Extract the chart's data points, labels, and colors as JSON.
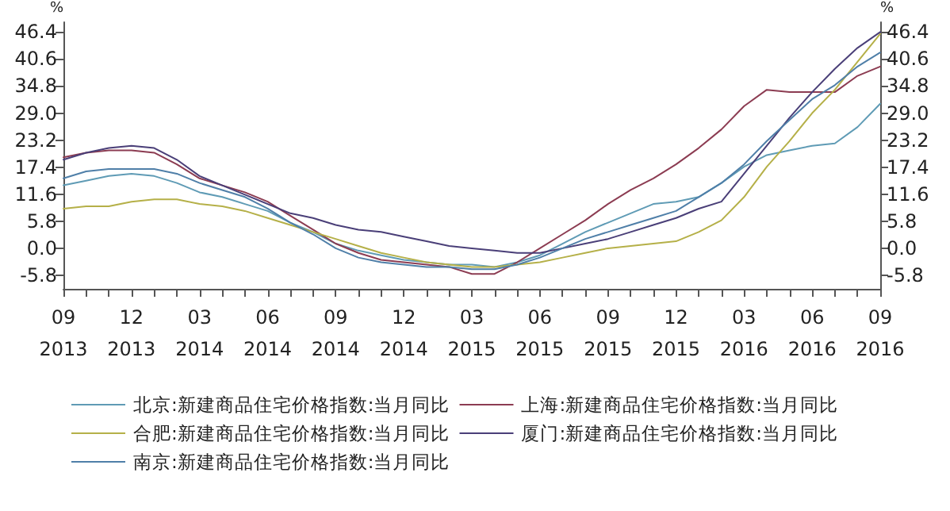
{
  "chart_data": {
    "type": "line",
    "ylabel": "%",
    "y2label": "%",
    "categories": [
      "09\n2013",
      null,
      null,
      "12\n2013",
      null,
      null,
      "03\n2014",
      null,
      null,
      "06\n2014",
      null,
      null,
      "09\n2014",
      null,
      null,
      "12\n2014",
      null,
      null,
      "03\n2015",
      null,
      null,
      "06\n2015",
      null,
      null,
      "09\n2015",
      null,
      null,
      "12\n2015",
      null,
      null,
      "03\n2016",
      null,
      null,
      "06\n2016",
      null,
      null,
      "09\n2016"
    ],
    "series": [
      {
        "name": "北京:新建商品住宅价格指数:当月同比",
        "color": "#5f9bb5",
        "values": [
          13.5,
          14.5,
          15.5,
          16,
          15.5,
          14,
          12,
          11,
          9.5,
          8,
          5.5,
          3.5,
          1,
          -0.5,
          -1.5,
          -2.5,
          -3,
          -3.5,
          -3.5,
          -4,
          -3,
          -1.5,
          1,
          3.5,
          5.5,
          7.5,
          9.5,
          10,
          11,
          14,
          17.5,
          20,
          21,
          22,
          22.5,
          26,
          31
        ]
      },
      {
        "name": "上海:新建商品住宅价格指数:当月同比",
        "color": "#8c3c52",
        "values": [
          19.5,
          20.5,
          21,
          21,
          20.5,
          18,
          15,
          13.5,
          12,
          10,
          7,
          4,
          1,
          -1,
          -2.5,
          -3,
          -3.5,
          -4,
          -5.5,
          -5.5,
          -3,
          0,
          3,
          6,
          9.5,
          12.5,
          15,
          18,
          21.5,
          25.5,
          30.5,
          34,
          33.5,
          33.5,
          33.5,
          37,
          39
        ]
      },
      {
        "name": "合肥:新建商品住宅价格指数:当月同比",
        "color": "#b5b048",
        "values": [
          8.5,
          9,
          9,
          10,
          10.5,
          10.5,
          9.5,
          9,
          8,
          6.5,
          5,
          3.5,
          2,
          0.5,
          -1,
          -2,
          -3,
          -3.5,
          -4,
          -4,
          -3.5,
          -3,
          -2,
          -1,
          0,
          0.5,
          1,
          1.5,
          3.5,
          6,
          11,
          17.5,
          23,
          29,
          34,
          40,
          46
        ]
      },
      {
        "name": "厦门:新建商品住宅价格指数:当月同比",
        "color": "#4a3f78",
        "values": [
          19,
          20.5,
          21.5,
          22,
          21.5,
          19,
          15.5,
          13.5,
          11.5,
          9.5,
          7.5,
          6.5,
          5,
          4,
          3.5,
          2.5,
          1.5,
          0.5,
          0,
          -0.5,
          -1,
          -1,
          0,
          1,
          2,
          3.5,
          5,
          6.5,
          8.5,
          10,
          16,
          22,
          28,
          33.5,
          38.5,
          43,
          46.4
        ]
      },
      {
        "name": "南京:新建商品住宅价格指数:当月同比",
        "color": "#4f7fa8",
        "values": [
          15,
          16.5,
          17,
          17,
          17,
          16,
          14,
          12.5,
          11,
          8.5,
          5.5,
          3,
          0,
          -2,
          -3,
          -3.5,
          -4,
          -4,
          -4.5,
          -4.5,
          -3.5,
          -2,
          0,
          2,
          3.5,
          5,
          6.5,
          8,
          11,
          14,
          18,
          23,
          27.5,
          32,
          35,
          39,
          42
        ]
      }
    ],
    "ylim": [
      -8.7,
      48.5
    ],
    "yticks": [
      -5.8,
      {
        "value": 0,
        "label": "0.0"
      },
      5.8,
      11.6,
      17.4,
      23.2,
      {
        "value": 29,
        "label": "29.0"
      },
      34.8,
      40.6,
      46.4
    ],
    "y2lim": [
      -8.7,
      48.5
    ],
    "y2ticks": [
      -5.8,
      {
        "value": 0,
        "label": "0.0"
      },
      5.8,
      11.6,
      17.4,
      23.2,
      {
        "value": 29,
        "label": "29.0"
      },
      34.8,
      40.6,
      46.4
    ],
    "grid": false,
    "legend": "bottom",
    "marker": "none",
    "line_style": "solid"
  }
}
